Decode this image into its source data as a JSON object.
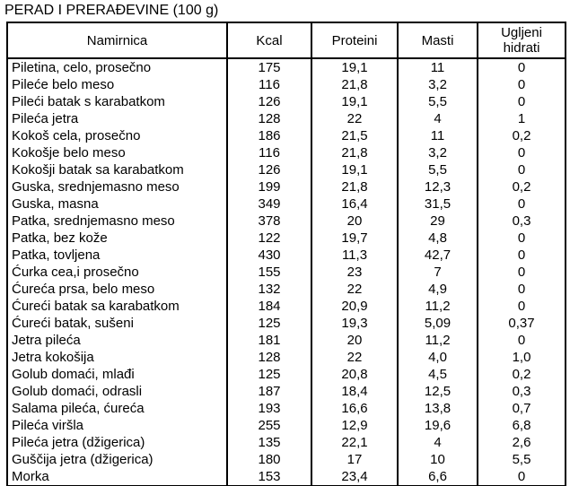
{
  "title": "PERAD I PRERAĐEVINE (100 g)",
  "table": {
    "columns": [
      "Namirnica",
      "Kcal",
      "Proteini",
      "Masti",
      "Ugljeni\nhidrati"
    ],
    "rows": [
      [
        "Piletina, celo, prosečno",
        "175",
        "19,1",
        "11",
        "0"
      ],
      [
        "Pileće belo meso",
        "116",
        "21,8",
        "3,2",
        "0"
      ],
      [
        "Pileći batak s karabatkom",
        "126",
        "19,1",
        "5,5",
        "0"
      ],
      [
        "Pileća jetra",
        "128",
        "22",
        "4",
        "1"
      ],
      [
        "Kokoš cela, prosečno",
        "186",
        "21,5",
        "11",
        "0,2"
      ],
      [
        "Kokošje belo meso",
        "116",
        "21,8",
        "3,2",
        "0"
      ],
      [
        "Kokošji batak sa karabatkom",
        "126",
        "19,1",
        "5,5",
        "0"
      ],
      [
        "Guska, srednjemasno meso",
        "199",
        "21,8",
        "12,3",
        "0,2"
      ],
      [
        "Guska, masna",
        "349",
        "16,4",
        "31,5",
        "0"
      ],
      [
        "Patka, srednjemasno meso",
        "378",
        "20",
        "29",
        "0,3"
      ],
      [
        "Patka, bez kože",
        "122",
        "19,7",
        "4,8",
        "0"
      ],
      [
        "Patka, tovljena",
        "430",
        "11,3",
        "42,7",
        "0"
      ],
      [
        "Ćurka cea,i prosečno",
        "155",
        "23",
        "7",
        "0"
      ],
      [
        "Ćureća prsa, belo meso",
        "132",
        "22",
        "4,9",
        "0"
      ],
      [
        "Ćureći batak sa karabatkom",
        "184",
        "20,9",
        "11,2",
        "0"
      ],
      [
        "Ćureći batak, sušeni",
        "125",
        "19,3",
        "5,09",
        "0,37"
      ],
      [
        "Jetra pileća",
        "181",
        "20",
        "11,2",
        "0"
      ],
      [
        "Jetra kokošija",
        "128",
        "22",
        "4,0",
        "1,0"
      ],
      [
        "Golub domaći, mlađi",
        "125",
        "20,8",
        "4,5",
        "0,2"
      ],
      [
        "Golub domaći, odrasli",
        "187",
        "18,4",
        "12,5",
        "0,3"
      ],
      [
        "Salama pileća, ćureća",
        "193",
        "16,6",
        "13,8",
        "0,7"
      ],
      [
        "Pileća viršla",
        "255",
        "12,9",
        "19,6",
        "6,8"
      ],
      [
        "Pileća jetra (džigerica)",
        "135",
        "22,1",
        "4",
        "2,6"
      ],
      [
        "Guščija jetra (džigerica)",
        "180",
        "17",
        "10",
        "5,5"
      ],
      [
        "Morka",
        "153",
        "23,4",
        "6,6",
        "0"
      ]
    ]
  }
}
